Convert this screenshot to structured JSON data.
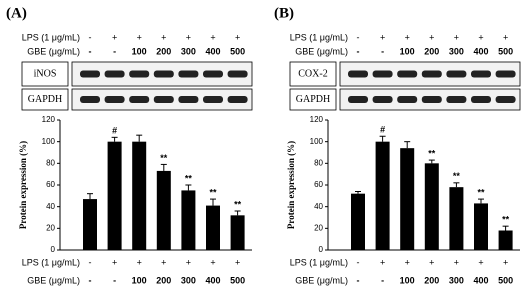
{
  "chart_data": [
    {
      "type": "bar",
      "panel_label": "(A)",
      "blots": [
        "iNOS",
        "GAPDH"
      ],
      "treatments": [
        {
          "label": "LPS (1 μg/mL)",
          "levels": [
            "-",
            "+",
            "+",
            "+",
            "+",
            "+",
            "+"
          ]
        },
        {
          "label": "GBE (μg/mL)",
          "levels": [
            "-",
            "-",
            "100",
            "200",
            "300",
            "400",
            "500"
          ]
        }
      ],
      "ylabel": "Protein expression (%)",
      "ylim": [
        0,
        120
      ],
      "yticks": [
        0,
        20,
        40,
        60,
        80,
        100,
        120
      ],
      "values": [
        47,
        100,
        100,
        73,
        55,
        41,
        32
      ],
      "errors": [
        5,
        4,
        6,
        6,
        5,
        6,
        4
      ],
      "annotations": [
        null,
        "#",
        null,
        "**",
        "**",
        "**",
        "**"
      ],
      "color": "#000000"
    },
    {
      "type": "bar",
      "panel_label": "(B)",
      "blots": [
        "COX-2",
        "GAPDH"
      ],
      "treatments": [
        {
          "label": "LPS (1 μg/mL)",
          "levels": [
            "-",
            "+",
            "+",
            "+",
            "+",
            "+",
            "+"
          ]
        },
        {
          "label": "GBE (μg/mL)",
          "levels": [
            "-",
            "-",
            "100",
            "200",
            "300",
            "400",
            "500"
          ]
        }
      ],
      "ylabel": "Protein expression (%)",
      "ylim": [
        0,
        120
      ],
      "yticks": [
        0,
        20,
        40,
        60,
        80,
        100,
        120
      ],
      "values": [
        52,
        100,
        94,
        80,
        58,
        43,
        18
      ],
      "errors": [
        2,
        5,
        6,
        3,
        4,
        4,
        4
      ],
      "annotations": [
        null,
        "#",
        null,
        "**",
        "**",
        "**",
        "**"
      ],
      "color": "#000000"
    }
  ]
}
